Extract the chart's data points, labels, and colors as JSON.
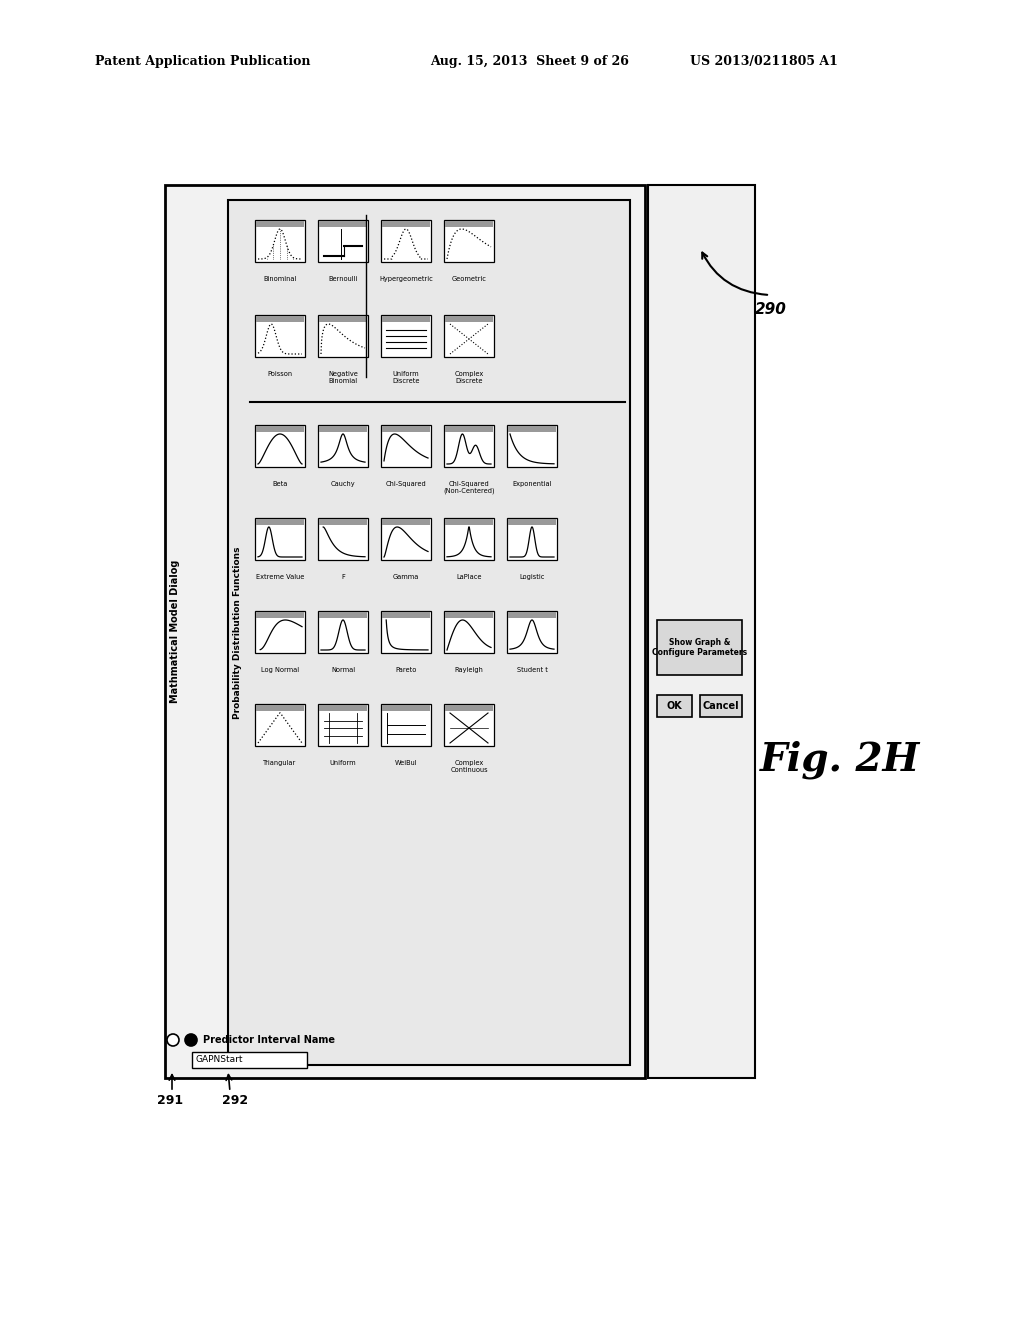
{
  "page_header_left": "Patent Application Publication",
  "page_header_mid": "Aug. 15, 2013  Sheet 9 of 26",
  "page_header_right": "US 2013/0211805 A1",
  "fig_label": "Fig. 2H",
  "dialog_title": "Mathmatical Model Dialog",
  "label_290": "290",
  "label_291": "291",
  "label_292": "292",
  "predictor_label": "Predictor Interval Name",
  "input_text": "GAPNStart",
  "section_title": "Probability Distribution Functions",
  "btn_show": "Show Graph & Configure Parameters",
  "btn_ok": "OK",
  "btn_cancel": "Cancel",
  "bg_color": "#ffffff"
}
